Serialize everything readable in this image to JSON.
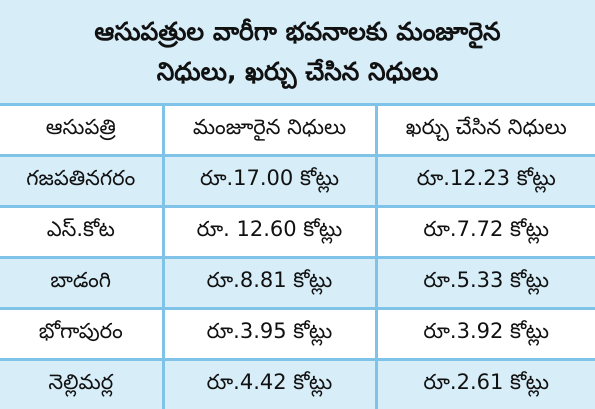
{
  "title": {
    "line1": "ఆసుపత్రుల వారీగా భవనాలకు మంజూరైన",
    "line2": "నిధులు, ఖర్చు చేసిన నిధులు"
  },
  "table": {
    "headers": [
      "ఆసుపత్రి",
      "మంజూరైన నిధులు",
      "ఖర్చు చేసిన నిధులు"
    ],
    "rows": [
      [
        "గజపతినగరం",
        "రూ.17.00 కోట్లు",
        "రూ.12.23 కోట్లు"
      ],
      [
        "ఎస్.కోట",
        "రూ. 12.60 కోట్లు",
        "రూ.7.72 కోట్లు"
      ],
      [
        "బాడంగి",
        "రూ.8.81 కోట్లు",
        "రూ.5.33 కోట్లు"
      ],
      [
        "భోగాపురం",
        "రూ.3.95 కోట్లు",
        "రూ.3.92 కోట్లు"
      ],
      [
        "నెల్లిమర్ల",
        "రూ.4.42 కోట్లు",
        "రూ.2.61 కోట్లు"
      ]
    ]
  },
  "colors": {
    "shade": "#d7edf8",
    "border": "#7fc4e8",
    "text": "#111111"
  }
}
